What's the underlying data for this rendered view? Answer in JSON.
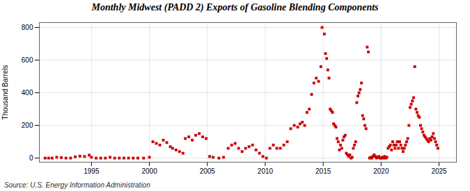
{
  "chart_data": {
    "type": "scatter",
    "title": "Monthly Midwest (PADD 2) Exports of Gasoline Blending Components",
    "ylabel": "Thousand Barrels",
    "caption": "Source: U.S. Energy Information Administration",
    "color": "#cc0000",
    "marker": "square",
    "grid": true,
    "xlim": [
      1990.5,
      2026.5
    ],
    "ylim": [
      -25,
      830
    ],
    "xticks": [
      1995,
      2000,
      2005,
      2010,
      2015,
      2020,
      2025
    ],
    "yticks": [
      0,
      200,
      400,
      600,
      800
    ],
    "x": [
      1991.0,
      1991.3,
      1991.6,
      1992.0,
      1992.4,
      1992.8,
      1993.2,
      1993.6,
      1994.0,
      1994.4,
      1994.8,
      1995.0,
      1995.4,
      1995.8,
      1996.2,
      1996.6,
      1997.0,
      1997.4,
      1997.8,
      1998.2,
      1998.6,
      1999.0,
      1999.5,
      2000.0,
      2000.3,
      2000.6,
      2000.9,
      2001.2,
      2001.5,
      2001.8,
      2002.0,
      2002.3,
      2002.6,
      2002.9,
      2003.1,
      2003.4,
      2003.7,
      2004.0,
      2004.3,
      2004.6,
      2004.9,
      2005.2,
      2005.5,
      2006.0,
      2006.4,
      2006.8,
      2007.1,
      2007.4,
      2007.7,
      2008.0,
      2008.3,
      2008.6,
      2008.9,
      2009.2,
      2009.5,
      2009.8,
      2010.1,
      2010.4,
      2010.7,
      2011.0,
      2011.3,
      2011.6,
      2011.9,
      2012.2,
      2012.5,
      2012.8,
      2013.0,
      2013.2,
      2013.4,
      2013.6,
      2013.8,
      2014.0,
      2014.2,
      2014.4,
      2014.6,
      2014.8,
      2014.9,
      2015.1,
      2015.2,
      2015.3,
      2015.4,
      2015.5,
      2015.6,
      2015.7,
      2015.8,
      2015.9,
      2016.0,
      2016.1,
      2016.2,
      2016.3,
      2016.4,
      2016.5,
      2016.6,
      2016.7,
      2016.8,
      2016.9,
      2017.0,
      2017.1,
      2017.2,
      2017.3,
      2017.4,
      2017.5,
      2017.6,
      2017.7,
      2017.8,
      2017.9,
      2018.0,
      2018.1,
      2018.2,
      2018.3,
      2018.4,
      2018.5,
      2018.6,
      2018.7,
      2018.8,
      2018.9,
      2019.0,
      2019.1,
      2019.2,
      2019.3,
      2019.4,
      2019.5,
      2019.6,
      2019.7,
      2019.8,
      2019.9,
      2020.0,
      2020.1,
      2020.2,
      2020.3,
      2020.4,
      2020.5,
      2020.6,
      2020.7,
      2020.8,
      2020.9,
      2021.0,
      2021.1,
      2021.2,
      2021.3,
      2021.4,
      2021.5,
      2021.6,
      2021.7,
      2021.8,
      2021.9,
      2022.0,
      2022.1,
      2022.2,
      2022.3,
      2022.4,
      2022.5,
      2022.6,
      2022.7,
      2022.8,
      2022.9,
      2023.0,
      2023.1,
      2023.2,
      2023.3,
      2023.4,
      2023.5,
      2023.6,
      2023.7,
      2023.8,
      2023.9,
      2024.0,
      2024.1,
      2024.2,
      2024.3,
      2024.4,
      2024.5,
      2024.6,
      2024.7,
      2024.8,
      2024.9
    ],
    "values": [
      0,
      0,
      0,
      5,
      3,
      0,
      0,
      8,
      12,
      10,
      18,
      5,
      0,
      0,
      0,
      5,
      0,
      0,
      0,
      0,
      0,
      0,
      0,
      5,
      100,
      90,
      80,
      110,
      95,
      70,
      60,
      50,
      40,
      30,
      120,
      130,
      110,
      140,
      150,
      130,
      120,
      10,
      5,
      0,
      5,
      60,
      80,
      90,
      60,
      40,
      60,
      70,
      80,
      50,
      30,
      10,
      0,
      60,
      80,
      60,
      60,
      80,
      100,
      180,
      200,
      190,
      210,
      220,
      200,
      280,
      300,
      390,
      460,
      490,
      470,
      560,
      800,
      760,
      640,
      610,
      540,
      490,
      300,
      290,
      280,
      210,
      200,
      190,
      120,
      100,
      50,
      80,
      60,
      110,
      130,
      140,
      30,
      20,
      10,
      20,
      0,
      5,
      60,
      80,
      100,
      340,
      380,
      400,
      420,
      460,
      260,
      240,
      200,
      180,
      680,
      650,
      0,
      5,
      0,
      10,
      20,
      10,
      0,
      5,
      10,
      0,
      0,
      5,
      0,
      10,
      0,
      5,
      60,
      70,
      80,
      50,
      100,
      80,
      60,
      80,
      100,
      60,
      100,
      80,
      60,
      40,
      60,
      80,
      100,
      120,
      200,
      310,
      330,
      350,
      370,
      560,
      300,
      280,
      260,
      250,
      200,
      180,
      160,
      140,
      130,
      120,
      110,
      100,
      120,
      110,
      130,
      150,
      120,
      100,
      80,
      60
    ]
  }
}
